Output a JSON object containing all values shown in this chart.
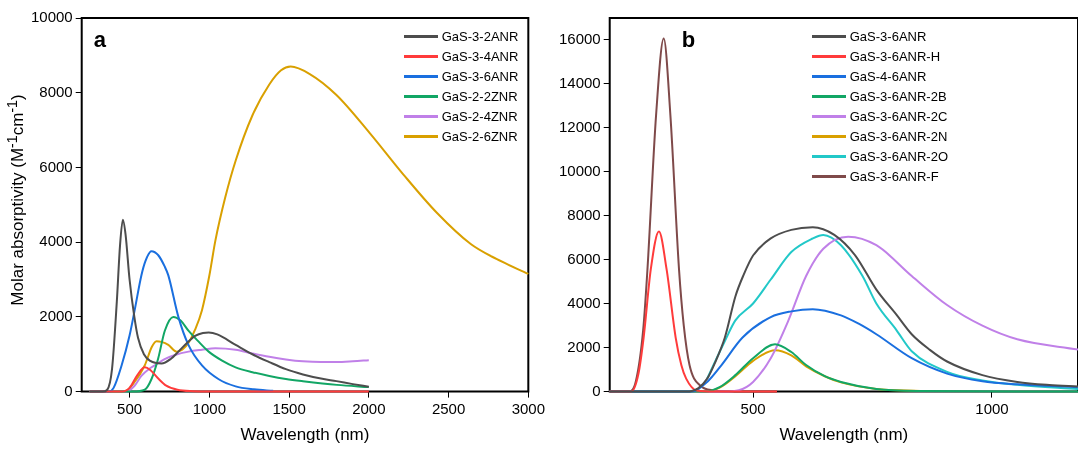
{
  "chart_data": [
    {
      "type": "line",
      "ylabel": "Molar absorptivity (M$^{-1}$cm$^{-1}$)",
      "xlabel": "Wavelength (nm)",
      "annotations": [
        "a"
      ],
      "xlim": [
        200,
        3000
      ],
      "xticks": [
        500,
        1000,
        1500,
        2000,
        2500,
        3000
      ],
      "ylim": [
        0,
        10000
      ],
      "yticks": [
        0,
        2000,
        4000,
        6000,
        8000,
        10000
      ],
      "grid": false,
      "legend": "top right",
      "marker": "none",
      "line_style": "solid",
      "series": [
        {
          "name": "GaS-3-2ANR",
          "color": "#4d4d4d",
          "x": [
            250,
            330,
            360,
            390,
            420,
            440,
            458,
            475,
            500,
            530,
            553,
            590,
            630,
            700,
            760,
            806,
            860,
            911,
            960,
            996,
            1050,
            1165,
            1270,
            1376,
            1480,
            1587,
            1700,
            1797,
            1900,
            2000
          ],
          "values": [
            0,
            0,
            50,
            600,
            2400,
            3900,
            4600,
            4200,
            3000,
            2000,
            1440,
            1000,
            820,
            750,
            880,
            1070,
            1300,
            1490,
            1570,
            1580,
            1530,
            1250,
            1000,
            790,
            600,
            460,
            350,
            280,
            200,
            130
          ]
        },
        {
          "name": "GaS-3-4ANR",
          "color": "#ff3b3b",
          "x": [
            250,
            450,
            500,
            550,
            595,
            630,
            680,
            730,
            800,
            900,
            1000,
            2000
          ],
          "values": [
            0,
            0,
            100,
            450,
            650,
            580,
            350,
            160,
            50,
            10,
            0,
            0
          ]
        },
        {
          "name": "GaS-3-6ANR",
          "color": "#1a6fdf",
          "x": [
            250,
            370,
            400,
            450,
            500,
            532,
            574,
            600,
            637,
            680,
            720,
            743,
            806,
            869,
            954,
            1059,
            1165,
            1280,
            1400
          ],
          "values": [
            0,
            0,
            100,
            700,
            1500,
            2180,
            3110,
            3500,
            3760,
            3650,
            3350,
            3110,
            2000,
            1250,
            700,
            330,
            140,
            60,
            20
          ]
        },
        {
          "name": "GaS-2-2ZNR",
          "color": "#12a665",
          "x": [
            250,
            520,
            595,
            637,
            679,
            721,
            774,
            820,
            869,
            930,
            996,
            1080,
            1165,
            1270,
            1376,
            1480,
            1587,
            1800,
            2000
          ],
          "values": [
            0,
            0,
            50,
            330,
            880,
            1630,
            2000,
            1900,
            1630,
            1350,
            1070,
            830,
            650,
            520,
            420,
            340,
            280,
            180,
            120
          ]
        },
        {
          "name": "GaS-2-4ZNR",
          "color": "#c080e8",
          "x": [
            250,
            480,
            530,
            574,
            620,
            658,
            720,
            785,
            870,
            954,
            1038,
            1165,
            1270,
            1376,
            1480,
            1587,
            1700,
            1797,
            1900,
            2000
          ],
          "values": [
            0,
            0,
            150,
            420,
            600,
            700,
            870,
            980,
            1070,
            1120,
            1160,
            1120,
            1020,
            930,
            860,
            810,
            790,
            790,
            810,
            840
          ]
        },
        {
          "name": "GaS-2-6ZNR",
          "color": "#d9a000",
          "x": [
            250,
            470,
            530,
            595,
            640,
            669,
            700,
            743,
            795,
            830,
            869,
            910,
            954,
            1000,
            1038,
            1100,
            1165,
            1270,
            1376,
            1450,
            1510,
            1630,
            1797,
            2006,
            2217,
            2428,
            2639,
            2800,
            3000
          ],
          "values": [
            0,
            0,
            250,
            700,
            1200,
            1350,
            1330,
            1250,
            1070,
            1120,
            1300,
            1650,
            2180,
            3100,
            4040,
            5200,
            6180,
            7390,
            8220,
            8600,
            8700,
            8500,
            7940,
            6920,
            5810,
            4780,
            3950,
            3550,
            3150
          ]
        }
      ]
    },
    {
      "type": "line",
      "xlabel": "Wavelength (nm)",
      "annotations": [
        "b"
      ],
      "xlim": [
        200,
        1180
      ],
      "xticks": [
        500,
        1000
      ],
      "ylim": [
        0,
        17000
      ],
      "yticks": [
        0,
        2000,
        4000,
        6000,
        8000,
        10000,
        12000,
        14000,
        16000
      ],
      "grid": false,
      "legend": "top right",
      "marker": "none",
      "line_style": "solid",
      "series": [
        {
          "name": "GaS-3-6ANR",
          "color": "#4d4d4d",
          "x": [
            200,
            360,
            385,
            404,
            420,
            441,
            463,
            480,
            500,
            537,
            580,
            625,
            670,
            714,
            758,
            800,
            832,
            870,
            906,
            980,
            1053,
            1120,
            1180
          ],
          "values": [
            0,
            0,
            150,
            590,
            1300,
            2460,
            4330,
            5300,
            6190,
            6970,
            7360,
            7480,
            7130,
            6190,
            4640,
            3500,
            2610,
            1900,
            1370,
            750,
            440,
            300,
            230
          ]
        },
        {
          "name": "GaS-3-6ANR-H",
          "color": "#ff3b3b",
          "x": [
            200,
            245,
            260,
            271,
            286,
            303,
            319,
            338,
            350,
            360,
            382,
            420,
            550
          ],
          "values": [
            0,
            0,
            800,
            2460,
            5570,
            7280,
            5570,
            2460,
            1200,
            590,
            50,
            0,
            0
          ]
        },
        {
          "name": "GaS-4-6ANR",
          "color": "#1a6fdf",
          "x": [
            200,
            370,
            404,
            434,
            478,
            537,
            580,
            625,
            684,
            720,
            758,
            832,
            906,
            980,
            1053,
            1180
          ],
          "values": [
            0,
            0,
            440,
            1210,
            2460,
            3390,
            3650,
            3750,
            3470,
            3100,
            2610,
            1520,
            820,
            470,
            330,
            200
          ]
        },
        {
          "name": "GaS-3-6ANR-2B",
          "color": "#12a665",
          "x": [
            200,
            400,
            430,
            463,
            500,
            546,
            580,
            611,
            650,
            684,
            758,
            850,
            1180
          ],
          "values": [
            0,
            0,
            200,
            750,
            1520,
            2150,
            1800,
            1210,
            700,
            440,
            120,
            30,
            0
          ]
        },
        {
          "name": "GaS-3-6ANR-2C",
          "color": "#c080e8",
          "x": [
            200,
            440,
            470,
            500,
            537,
            574,
            611,
            647,
            699,
            758,
            832,
            906,
            980,
            1053,
            1180
          ],
          "values": [
            0,
            0,
            60,
            440,
            1520,
            3240,
            5260,
            6500,
            7050,
            6660,
            5260,
            3940,
            3000,
            2380,
            1910
          ]
        },
        {
          "name": "GaS-3-6ANR-2N",
          "color": "#d9a000",
          "x": [
            200,
            400,
            430,
            463,
            500,
            546,
            580,
            611,
            650,
            684,
            758,
            850
          ],
          "values": [
            0,
            0,
            180,
            700,
            1400,
            1880,
            1650,
            1150,
            700,
            420,
            120,
            30
          ]
        },
        {
          "name": "GaS-3-6ANR-2O",
          "color": "#22c8c8",
          "x": [
            404,
            441,
            463,
            500,
            537,
            580,
            625,
            647,
            684,
            729,
            758,
            800,
            832,
            906,
            980,
            1053,
            1180
          ],
          "values": [
            590,
            2300,
            3240,
            4010,
            5100,
            6350,
            6970,
            7130,
            6660,
            5260,
            4010,
            2800,
            1840,
            900,
            510,
            310,
            120
          ]
        },
        {
          "name": "GaS-3-6ANR-F",
          "color": "#7f4a4a",
          "x": [
            200,
            240,
            255,
            270,
            279,
            297,
            313,
            327,
            345,
            355,
            367,
            389,
            419,
            450,
            550
          ],
          "values": [
            0,
            0,
            500,
            2800,
            5570,
            12570,
            16070,
            12570,
            5570,
            3000,
            1210,
            280,
            50,
            0,
            0
          ]
        }
      ]
    }
  ]
}
